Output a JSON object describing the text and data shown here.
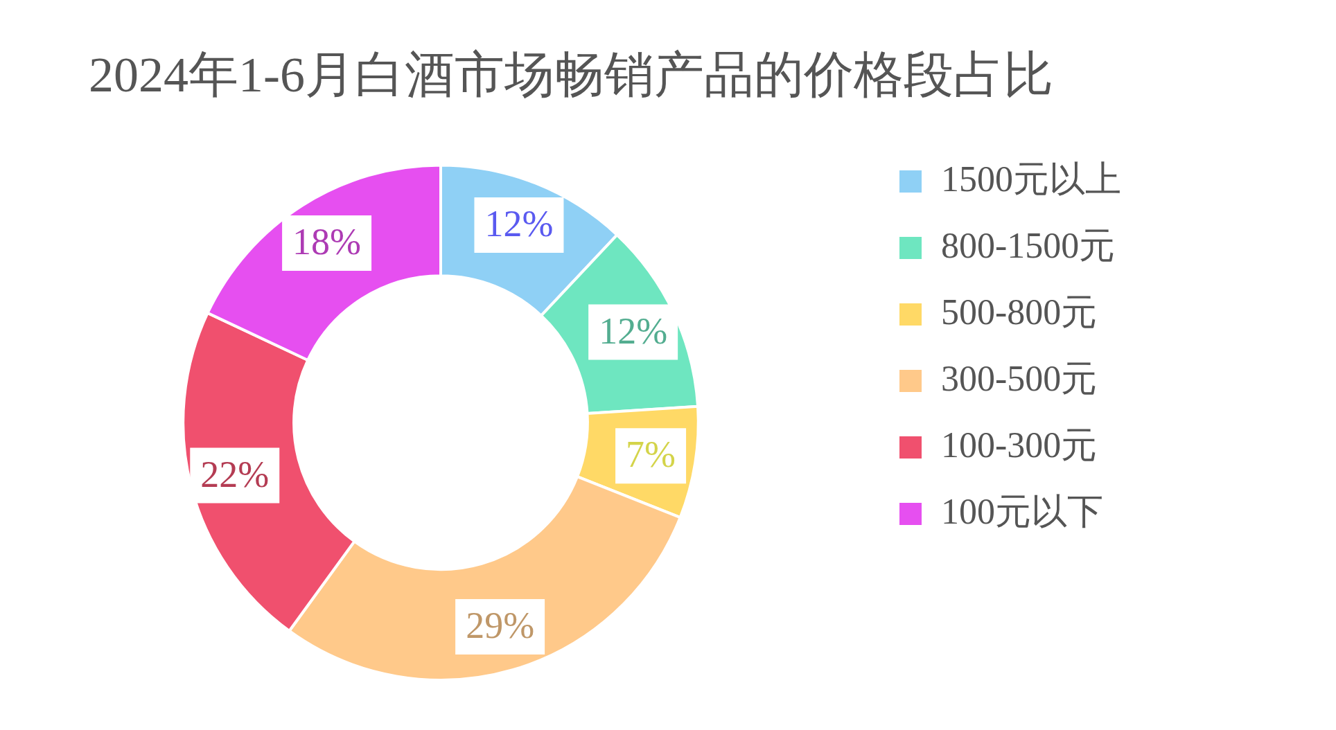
{
  "chart_data": {
    "type": "donut",
    "title": "2024年1-6月白酒市场畅销产品的价格段占比",
    "categories": [
      "1500元以上",
      "800-1500元",
      "500-800元",
      "300-500元",
      "100-300元",
      "100元以下"
    ],
    "values": [
      12,
      12,
      7,
      29,
      22,
      18
    ],
    "colors": [
      "#8fd0f5",
      "#6ee6c0",
      "#ffd966",
      "#ffc98a",
      "#f0506e",
      "#e64ff0"
    ],
    "value_labels": [
      "12%",
      "12%",
      "7%",
      "29%",
      "22%",
      "18%"
    ],
    "legend": "right"
  }
}
